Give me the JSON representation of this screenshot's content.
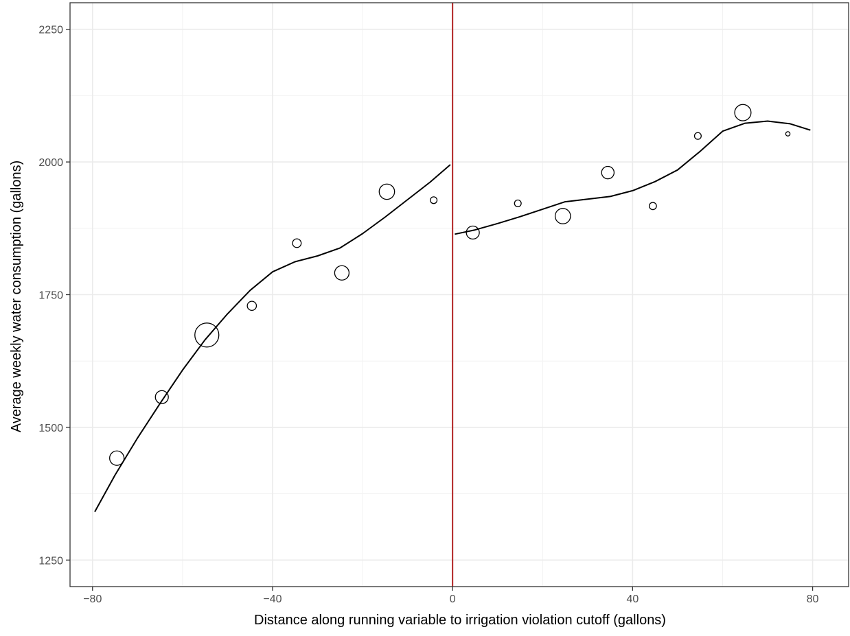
{
  "chart_data": {
    "type": "scatter",
    "title": "",
    "xlabel": "Distance along running variable to irrigation violation cutoff (gallons)",
    "ylabel": "Average weekly water consumption (gallons)",
    "xlim": [
      -85,
      88
    ],
    "ylim": [
      1200,
      2300
    ],
    "x_ticks": [
      -80,
      -40,
      0,
      40,
      80
    ],
    "x_tick_labels": [
      "−80",
      "−40",
      "0",
      "40",
      "80"
    ],
    "y_ticks": [
      1250,
      1500,
      1750,
      2000,
      2250
    ],
    "y_tick_labels": [
      "1250",
      "1500",
      "1750",
      "2000",
      "2250"
    ],
    "grid": true,
    "cutoff": {
      "x": 0,
      "color": "#b22222"
    },
    "points": [
      {
        "x": -74.6,
        "y": 1442,
        "size": 3.0
      },
      {
        "x": -64.6,
        "y": 1557,
        "size": 2.7
      },
      {
        "x": -54.6,
        "y": 1674,
        "size": 5.0
      },
      {
        "x": -44.6,
        "y": 1729,
        "size": 1.9
      },
      {
        "x": -34.6,
        "y": 1847,
        "size": 1.8
      },
      {
        "x": -24.6,
        "y": 1791,
        "size": 3.0
      },
      {
        "x": -14.6,
        "y": 1944,
        "size": 3.2
      },
      {
        "x": -4.2,
        "y": 1928,
        "size": 1.4
      },
      {
        "x": 4.5,
        "y": 1867,
        "size": 2.7
      },
      {
        "x": 14.5,
        "y": 1922,
        "size": 1.4
      },
      {
        "x": 24.5,
        "y": 1898,
        "size": 3.2
      },
      {
        "x": 34.5,
        "y": 1980,
        "size": 2.6
      },
      {
        "x": 44.5,
        "y": 1917,
        "size": 1.5
      },
      {
        "x": 54.5,
        "y": 2049,
        "size": 1.4
      },
      {
        "x": 64.5,
        "y": 2093,
        "size": 3.4
      },
      {
        "x": 74.5,
        "y": 2053,
        "size": 0.9
      }
    ],
    "fit_left": [
      {
        "x": -79.5,
        "y": 1341
      },
      {
        "x": -75,
        "y": 1410
      },
      {
        "x": -70,
        "y": 1480
      },
      {
        "x": -65,
        "y": 1545
      },
      {
        "x": -60,
        "y": 1608
      },
      {
        "x": -55,
        "y": 1665
      },
      {
        "x": -50,
        "y": 1714
      },
      {
        "x": -45,
        "y": 1758
      },
      {
        "x": -40,
        "y": 1793
      },
      {
        "x": -35,
        "y": 1812
      },
      {
        "x": -30,
        "y": 1823
      },
      {
        "x": -25,
        "y": 1838
      },
      {
        "x": -20,
        "y": 1865
      },
      {
        "x": -15,
        "y": 1896
      },
      {
        "x": -10,
        "y": 1929
      },
      {
        "x": -5,
        "y": 1962
      },
      {
        "x": -0.5,
        "y": 1995
      }
    ],
    "fit_right": [
      {
        "x": 0.5,
        "y": 1864
      },
      {
        "x": 5,
        "y": 1872
      },
      {
        "x": 10,
        "y": 1884
      },
      {
        "x": 15,
        "y": 1897
      },
      {
        "x": 20,
        "y": 1911
      },
      {
        "x": 25,
        "y": 1925
      },
      {
        "x": 30,
        "y": 1930
      },
      {
        "x": 35,
        "y": 1935
      },
      {
        "x": 40,
        "y": 1946
      },
      {
        "x": 45,
        "y": 1963
      },
      {
        "x": 50,
        "y": 1985
      },
      {
        "x": 55,
        "y": 2020
      },
      {
        "x": 60,
        "y": 2058
      },
      {
        "x": 65,
        "y": 2073
      },
      {
        "x": 70,
        "y": 2077
      },
      {
        "x": 75,
        "y": 2072
      },
      {
        "x": 79.5,
        "y": 2060
      }
    ]
  }
}
